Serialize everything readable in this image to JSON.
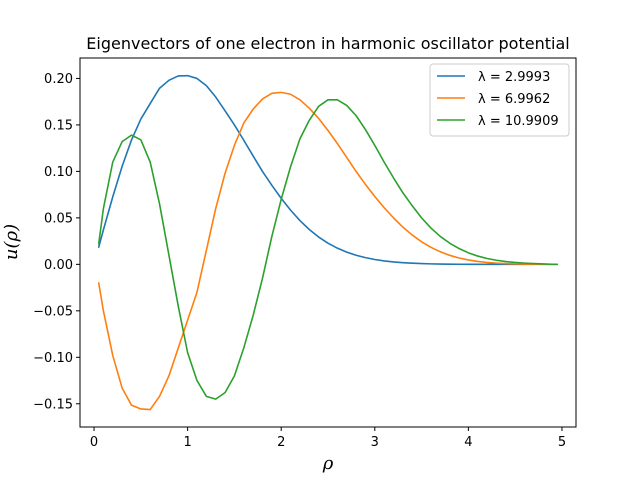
{
  "chart_data": {
    "type": "line",
    "title": "Eigenvectors of one electron in harmonic oscillator potential",
    "xlabel": "ρ",
    "ylabel": "u(ρ)",
    "xlim": [
      -0.15,
      5.15
    ],
    "ylim": [
      -0.175,
      0.222
    ],
    "xticks": [
      0,
      1,
      2,
      3,
      4,
      5
    ],
    "yticks": [
      -0.15,
      -0.1,
      -0.05,
      0.0,
      0.05,
      0.1,
      0.15,
      0.2
    ],
    "ytick_labels": [
      "−0.15",
      "−0.10",
      "−0.05",
      "0.00",
      "0.05",
      "0.10",
      "0.15",
      "0.20"
    ],
    "grid": false,
    "legend_position": "upper right",
    "x": [
      0.05,
      0.1,
      0.2,
      0.3,
      0.4,
      0.5,
      0.6,
      0.7,
      0.8,
      0.9,
      1.0,
      1.1,
      1.2,
      1.3,
      1.4,
      1.5,
      1.6,
      1.7,
      1.8,
      1.9,
      2.0,
      2.1,
      2.2,
      2.3,
      2.4,
      2.5,
      2.6,
      2.7,
      2.8,
      2.9,
      3.0,
      3.1,
      3.2,
      3.3,
      3.4,
      3.5,
      3.6,
      3.7,
      3.8,
      3.9,
      4.0,
      4.1,
      4.2,
      4.3,
      4.4,
      4.5,
      4.6,
      4.7,
      4.8,
      4.9,
      4.95
    ],
    "series": [
      {
        "name": "λ = 2.9993",
        "color": "#1f77b4",
        "values": [
          0.0185,
          0.0371,
          0.0726,
          0.1054,
          0.1337,
          0.1563,
          0.173,
          0.1895,
          0.198,
          0.2027,
          0.203,
          0.2,
          0.1923,
          0.18,
          0.1652,
          0.15,
          0.1335,
          0.1166,
          0.1,
          0.085,
          0.071,
          0.0583,
          0.0471,
          0.0375,
          0.0294,
          0.0228,
          0.0174,
          0.0131,
          0.0098,
          0.0072,
          0.0052,
          0.0037,
          0.0026,
          0.0018,
          0.0012,
          0.0008,
          0.0005,
          0.0003,
          0.0002,
          0.0001,
          0.0,
          0.0,
          0.0,
          0.0,
          0.0,
          0.0,
          0.0,
          0.0,
          0.0,
          0.0,
          0.0
        ]
      },
      {
        "name": "λ = 6.9962",
        "color": "#ff7f0e",
        "values": [
          -0.02,
          -0.05,
          -0.098,
          -0.133,
          -0.1515,
          -0.1556,
          -0.1562,
          -0.142,
          -0.12,
          -0.09,
          -0.06,
          -0.03,
          0.015,
          0.06,
          0.098,
          0.128,
          0.152,
          0.167,
          0.178,
          0.184,
          0.185,
          0.183,
          0.177,
          0.168,
          0.157,
          0.144,
          0.13,
          0.115,
          0.1,
          0.086,
          0.073,
          0.061,
          0.05,
          0.04,
          0.0315,
          0.0243,
          0.0183,
          0.0135,
          0.0097,
          0.0068,
          0.0047,
          0.0031,
          0.002,
          0.0013,
          0.0008,
          0.0005,
          0.0003,
          0.0002,
          0.0001,
          0.0,
          0.0
        ]
      },
      {
        "name": "λ = 10.9909",
        "color": "#2ca02c",
        "values": [
          0.022,
          0.06,
          0.11,
          0.132,
          0.139,
          0.134,
          0.11,
          0.065,
          0.01,
          -0.045,
          -0.095,
          -0.125,
          -0.142,
          -0.145,
          -0.138,
          -0.12,
          -0.09,
          -0.055,
          -0.015,
          0.03,
          0.07,
          0.105,
          0.135,
          0.155,
          0.17,
          0.177,
          0.177,
          0.171,
          0.16,
          0.145,
          0.128,
          0.11,
          0.093,
          0.077,
          0.063,
          0.05,
          0.039,
          0.03,
          0.0228,
          0.017,
          0.0124,
          0.0089,
          0.0063,
          0.0044,
          0.003,
          0.002,
          0.0013,
          0.0008,
          0.0004,
          0.0001,
          0.0
        ]
      }
    ]
  }
}
